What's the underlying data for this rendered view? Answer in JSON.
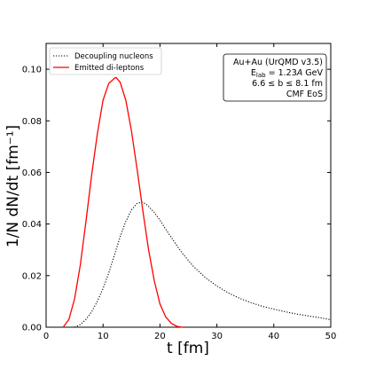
{
  "chart_data": {
    "type": "line",
    "xlabel": "t [fm]",
    "ylabel": "1/N dN/dt [fm⁻¹]",
    "xlim": [
      0,
      50
    ],
    "ylim": [
      0,
      0.11
    ],
    "xticks": [
      "0",
      "10",
      "20",
      "30",
      "40",
      "50"
    ],
    "yticks": [
      "0.00",
      "0.02",
      "0.04",
      "0.06",
      "0.08",
      "0.10"
    ],
    "grid": false,
    "legend_position": "top-left",
    "info_box": {
      "position": "top-right",
      "lines": [
        "Au+Au (UrQMD v3.5)",
        "E_lab = 1.23A GeV",
        "6.6 ≤ b ≤ 8.1 fm",
        "CMF EoS"
      ]
    },
    "series": [
      {
        "name": "Decoupling nucleons",
        "color": "#000000",
        "style": "dotted",
        "x": [
          5,
          6,
          7,
          8,
          9,
          10,
          11,
          12,
          13,
          14,
          15,
          16,
          16.8,
          17.5,
          18,
          19,
          20,
          21,
          22,
          23,
          24,
          25,
          26,
          28,
          30,
          32,
          34,
          36,
          38,
          40,
          42,
          44,
          46,
          48,
          50
        ],
        "y": [
          0.0,
          0.001,
          0.003,
          0.006,
          0.01,
          0.015,
          0.021,
          0.028,
          0.035,
          0.041,
          0.0455,
          0.048,
          0.0485,
          0.0478,
          0.0468,
          0.0445,
          0.0415,
          0.038,
          0.0348,
          0.0315,
          0.0285,
          0.0258,
          0.0233,
          0.0192,
          0.016,
          0.0133,
          0.0112,
          0.0095,
          0.0081,
          0.007,
          0.006,
          0.0051,
          0.0044,
          0.0037,
          0.0029
        ]
      },
      {
        "name": "Emitted di-leptons",
        "color": "#ff0000",
        "style": "solid",
        "x": [
          3,
          4,
          5,
          6,
          7,
          8,
          9,
          10,
          11,
          12,
          12.3,
          13,
          14,
          15,
          16,
          17,
          18,
          19,
          20,
          21,
          22,
          23,
          24
        ],
        "y": [
          0.0,
          0.003,
          0.011,
          0.024,
          0.041,
          0.059,
          0.075,
          0.088,
          0.0945,
          0.0965,
          0.0968,
          0.095,
          0.088,
          0.076,
          0.061,
          0.045,
          0.03,
          0.018,
          0.009,
          0.004,
          0.0015,
          0.0003,
          0.0
        ]
      }
    ]
  }
}
